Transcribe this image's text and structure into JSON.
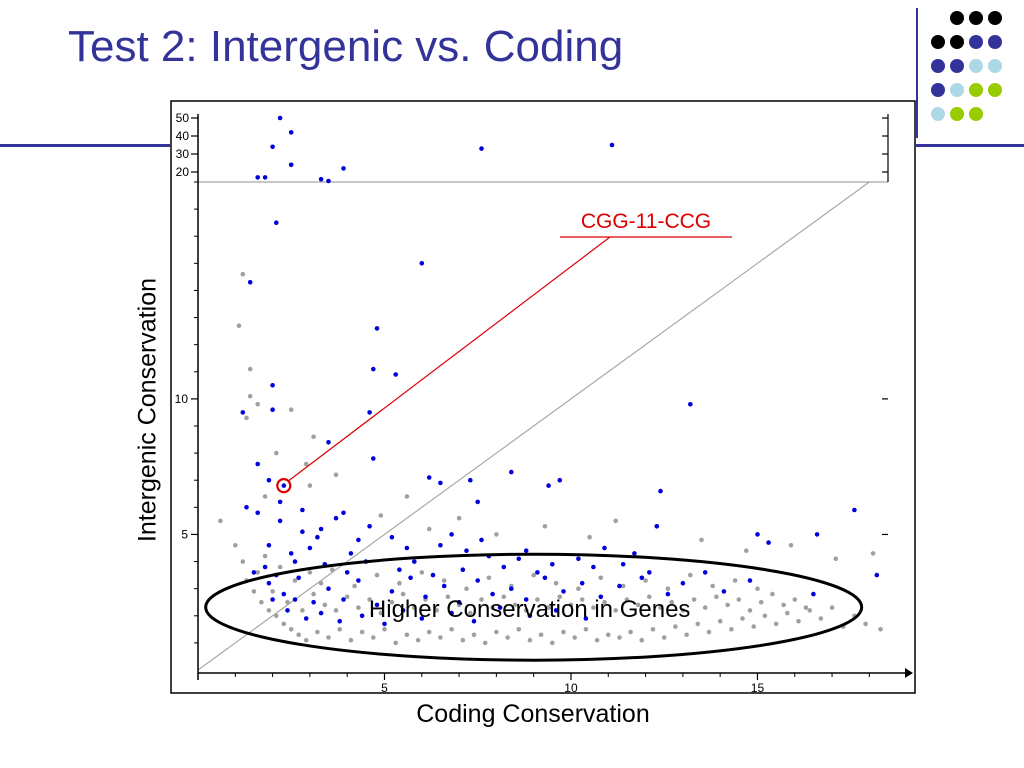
{
  "slide": {
    "title": "Test 2: Intergenic vs. Coding"
  },
  "decor": {
    "dot_colors": [
      "#000000",
      "#333399",
      "#add8e6",
      "#99cc00"
    ],
    "rule_color": "#333399"
  },
  "chart_data": {
    "type": "scatter",
    "title": "",
    "xlabel": "Coding Conservation",
    "ylabel": "Intergenic Conservation",
    "xlim": [
      0,
      18.5
    ],
    "ylim": [
      0,
      18
    ],
    "x_ticks": [
      5,
      10,
      15
    ],
    "x_tick_labels": [
      "5",
      "10",
      "15"
    ],
    "y_ticks": [
      5,
      10
    ],
    "y_tick_labels": [
      "5",
      "10"
    ],
    "y_break_ticks": [
      20,
      30,
      40,
      50
    ],
    "y_break_tick_labels": [
      "20",
      "30",
      "40",
      "50"
    ],
    "grid": false,
    "reference_lines": [
      "y = x diagonal",
      "horizontal line at y-axis break"
    ],
    "series": [
      {
        "color": "#0000dd",
        "points": [
          [
            2.1,
            16.5
          ],
          [
            1.4,
            14.3
          ],
          [
            2.0,
            10.5
          ],
          [
            2.0,
            9.6
          ],
          [
            3.5,
            8.4
          ],
          [
            4.8,
            12.6
          ],
          [
            4.7,
            11.1
          ],
          [
            5.3,
            10.9
          ],
          [
            4.6,
            9.5
          ],
          [
            4.7,
            7.8
          ],
          [
            6.2,
            7.1
          ],
          [
            6.5,
            6.9
          ],
          [
            7.3,
            7.0
          ],
          [
            8.4,
            7.3
          ],
          [
            7.5,
            6.2
          ],
          [
            9.4,
            6.8
          ],
          [
            9.7,
            7.0
          ],
          [
            12.4,
            6.6
          ],
          [
            13.2,
            9.8
          ],
          [
            6.0,
            15.0
          ],
          [
            2.3,
            6.8
          ],
          [
            1.9,
            7.0
          ],
          [
            1.6,
            7.6
          ],
          [
            1.2,
            9.5
          ],
          [
            1.3,
            6.0
          ],
          [
            15.0,
            5.0
          ],
          [
            16.6,
            5.0
          ],
          [
            17.6,
            5.9
          ],
          [
            15.3,
            4.7
          ],
          [
            12.3,
            5.3
          ],
          [
            18.2,
            3.5
          ],
          [
            16.5,
            2.8
          ],
          [
            14.8,
            3.3
          ],
          [
            14.1,
            2.9
          ],
          [
            13.6,
            3.6
          ],
          [
            11.7,
            4.3
          ],
          [
            10.9,
            4.5
          ],
          [
            10.2,
            4.1
          ],
          [
            9.5,
            3.9
          ],
          [
            8.8,
            4.4
          ],
          [
            8.2,
            3.8
          ],
          [
            7.8,
            4.2
          ],
          [
            7.1,
            3.7
          ],
          [
            6.5,
            4.6
          ],
          [
            5.8,
            4.0
          ],
          [
            5.2,
            4.9
          ],
          [
            4.6,
            5.3
          ],
          [
            4.1,
            4.3
          ],
          [
            3.7,
            5.6
          ],
          [
            3.2,
            4.9
          ],
          [
            2.8,
            5.1
          ],
          [
            2.5,
            4.3
          ],
          [
            2.2,
            5.5
          ],
          [
            1.9,
            4.6
          ],
          [
            1.6,
            5.8
          ],
          [
            1.5,
            3.6
          ],
          [
            1.9,
            3.2
          ],
          [
            2.3,
            2.8
          ],
          [
            2.7,
            3.4
          ],
          [
            3.1,
            2.5
          ],
          [
            3.5,
            3.0
          ],
          [
            3.9,
            2.6
          ],
          [
            4.3,
            3.3
          ],
          [
            4.8,
            2.4
          ],
          [
            5.2,
            2.9
          ],
          [
            5.7,
            3.4
          ],
          [
            6.1,
            2.7
          ],
          [
            6.6,
            3.1
          ],
          [
            7.0,
            2.5
          ],
          [
            7.5,
            3.3
          ],
          [
            7.9,
            2.8
          ],
          [
            8.4,
            3.0
          ],
          [
            8.8,
            2.6
          ],
          [
            9.3,
            3.4
          ],
          [
            9.8,
            2.9
          ],
          [
            10.3,
            3.2
          ],
          [
            10.8,
            2.7
          ],
          [
            11.3,
            3.1
          ],
          [
            11.9,
            3.4
          ],
          [
            12.6,
            2.8
          ],
          [
            2.4,
            2.2
          ],
          [
            2.9,
            1.9
          ],
          [
            3.3,
            2.1
          ],
          [
            3.8,
            1.8
          ],
          [
            4.4,
            2.0
          ],
          [
            5.0,
            1.7
          ],
          [
            5.5,
            2.2
          ],
          [
            6.0,
            1.9
          ],
          [
            6.8,
            2.1
          ],
          [
            7.4,
            1.8
          ],
          [
            8.1,
            2.3
          ],
          [
            8.9,
            2.0
          ],
          [
            9.6,
            2.2
          ],
          [
            10.4,
            1.9
          ],
          [
            2.0,
            2.6
          ],
          [
            1.8,
            3.8
          ],
          [
            2.6,
            4.0
          ],
          [
            3.0,
            4.5
          ],
          [
            3.4,
            3.9
          ],
          [
            4.0,
            3.6
          ],
          [
            4.5,
            4.0
          ],
          [
            5.4,
            3.7
          ],
          [
            6.3,
            3.5
          ],
          [
            7.2,
            4.4
          ],
          [
            8.6,
            4.1
          ],
          [
            9.1,
            3.6
          ],
          [
            10.6,
            3.8
          ],
          [
            11.4,
            3.9
          ],
          [
            12.1,
            3.6
          ],
          [
            13.0,
            3.2
          ],
          [
            2.2,
            6.2
          ],
          [
            2.8,
            5.9
          ],
          [
            3.3,
            5.2
          ],
          [
            3.9,
            5.8
          ],
          [
            4.3,
            4.8
          ],
          [
            5.6,
            4.5
          ],
          [
            6.8,
            5.0
          ],
          [
            7.6,
            4.8
          ],
          [
            2.1,
            3.5
          ],
          [
            2.6,
            2.6
          ]
        ]
      },
      {
        "color": "#a0a0a0",
        "points": [
          [
            0.6,
            5.5
          ],
          [
            1.0,
            4.6
          ],
          [
            1.2,
            4.0
          ],
          [
            1.3,
            3.3
          ],
          [
            1.5,
            2.9
          ],
          [
            1.7,
            2.5
          ],
          [
            1.9,
            2.2
          ],
          [
            2.1,
            2.0
          ],
          [
            2.3,
            1.7
          ],
          [
            2.5,
            1.5
          ],
          [
            2.7,
            1.3
          ],
          [
            2.9,
            1.1
          ],
          [
            3.2,
            1.4
          ],
          [
            3.5,
            1.2
          ],
          [
            3.8,
            1.5
          ],
          [
            4.1,
            1.1
          ],
          [
            4.4,
            1.4
          ],
          [
            4.7,
            1.2
          ],
          [
            5.0,
            1.5
          ],
          [
            5.3,
            1.0
          ],
          [
            5.6,
            1.3
          ],
          [
            5.9,
            1.1
          ],
          [
            6.2,
            1.4
          ],
          [
            6.5,
            1.2
          ],
          [
            6.8,
            1.5
          ],
          [
            7.1,
            1.1
          ],
          [
            7.4,
            1.3
          ],
          [
            7.7,
            1.0
          ],
          [
            8.0,
            1.4
          ],
          [
            8.3,
            1.2
          ],
          [
            8.6,
            1.5
          ],
          [
            8.9,
            1.1
          ],
          [
            9.2,
            1.3
          ],
          [
            9.5,
            1.0
          ],
          [
            9.8,
            1.4
          ],
          [
            10.1,
            1.2
          ],
          [
            10.4,
            1.5
          ],
          [
            10.7,
            1.1
          ],
          [
            11.0,
            1.3
          ],
          [
            11.3,
            1.2
          ],
          [
            11.6,
            1.4
          ],
          [
            11.9,
            1.1
          ],
          [
            12.2,
            1.5
          ],
          [
            12.5,
            1.2
          ],
          [
            12.8,
            1.6
          ],
          [
            13.1,
            1.3
          ],
          [
            13.4,
            1.7
          ],
          [
            13.7,
            1.4
          ],
          [
            14.0,
            1.8
          ],
          [
            14.3,
            1.5
          ],
          [
            14.6,
            1.9
          ],
          [
            14.9,
            1.6
          ],
          [
            15.2,
            2.0
          ],
          [
            15.5,
            1.7
          ],
          [
            15.8,
            2.1
          ],
          [
            16.1,
            1.8
          ],
          [
            16.4,
            2.2
          ],
          [
            16.7,
            1.9
          ],
          [
            17.0,
            2.3
          ],
          [
            17.3,
            1.6
          ],
          [
            17.6,
            2.0
          ],
          [
            17.9,
            1.7
          ],
          [
            18.3,
            1.5
          ],
          [
            2.0,
            2.9
          ],
          [
            2.4,
            2.5
          ],
          [
            2.8,
            2.2
          ],
          [
            3.1,
            2.8
          ],
          [
            3.4,
            2.4
          ],
          [
            3.7,
            2.2
          ],
          [
            4.0,
            2.7
          ],
          [
            4.3,
            2.3
          ],
          [
            4.6,
            2.6
          ],
          [
            4.9,
            2.1
          ],
          [
            5.2,
            2.5
          ],
          [
            5.5,
            2.8
          ],
          [
            5.8,
            2.3
          ],
          [
            6.1,
            2.6
          ],
          [
            6.4,
            2.2
          ],
          [
            6.7,
            2.7
          ],
          [
            7.0,
            2.4
          ],
          [
            7.3,
            2.1
          ],
          [
            7.6,
            2.6
          ],
          [
            7.9,
            2.3
          ],
          [
            8.2,
            2.7
          ],
          [
            8.5,
            2.4
          ],
          [
            8.8,
            2.2
          ],
          [
            9.1,
            2.6
          ],
          [
            9.4,
            2.3
          ],
          [
            9.7,
            2.7
          ],
          [
            10.0,
            2.4
          ],
          [
            10.3,
            2.6
          ],
          [
            10.6,
            2.3
          ],
          [
            10.9,
            2.5
          ],
          [
            11.2,
            2.2
          ],
          [
            11.5,
            2.6
          ],
          [
            11.8,
            2.4
          ],
          [
            12.1,
            2.7
          ],
          [
            12.4,
            2.3
          ],
          [
            12.7,
            2.5
          ],
          [
            13.0,
            2.2
          ],
          [
            13.3,
            2.6
          ],
          [
            13.6,
            2.3
          ],
          [
            13.9,
            2.7
          ],
          [
            14.2,
            2.4
          ],
          [
            14.5,
            2.6
          ],
          [
            14.8,
            2.2
          ],
          [
            15.1,
            2.5
          ],
          [
            15.4,
            2.8
          ],
          [
            15.7,
            2.4
          ],
          [
            16.0,
            2.6
          ],
          [
            16.3,
            2.3
          ],
          [
            1.6,
            3.6
          ],
          [
            1.8,
            4.2
          ],
          [
            2.2,
            3.8
          ],
          [
            2.6,
            3.3
          ],
          [
            3.0,
            3.6
          ],
          [
            3.3,
            3.2
          ],
          [
            3.6,
            3.7
          ],
          [
            4.2,
            3.1
          ],
          [
            4.8,
            3.5
          ],
          [
            5.4,
            3.2
          ],
          [
            6.0,
            3.6
          ],
          [
            6.6,
            3.3
          ],
          [
            7.2,
            3.0
          ],
          [
            7.8,
            3.4
          ],
          [
            8.4,
            3.1
          ],
          [
            9.0,
            3.5
          ],
          [
            9.6,
            3.2
          ],
          [
            10.2,
            3.0
          ],
          [
            10.8,
            3.4
          ],
          [
            11.4,
            3.1
          ],
          [
            12.0,
            3.3
          ],
          [
            12.6,
            3.0
          ],
          [
            13.2,
            3.5
          ],
          [
            13.8,
            3.1
          ],
          [
            14.4,
            3.3
          ],
          [
            15.0,
            3.0
          ],
          [
            1.3,
            9.3
          ],
          [
            1.2,
            14.6
          ],
          [
            1.4,
            11.1
          ],
          [
            1.4,
            10.1
          ],
          [
            1.6,
            9.8
          ],
          [
            2.1,
            8.0
          ],
          [
            1.8,
            6.4
          ],
          [
            3.0,
            6.8
          ],
          [
            3.7,
            7.2
          ],
          [
            5.6,
            6.4
          ],
          [
            4.9,
            5.7
          ],
          [
            6.2,
            5.2
          ],
          [
            7.0,
            5.6
          ],
          [
            8.0,
            5.0
          ],
          [
            9.3,
            5.3
          ],
          [
            10.5,
            4.9
          ],
          [
            11.2,
            5.5
          ],
          [
            13.5,
            4.8
          ],
          [
            14.7,
            4.4
          ],
          [
            15.9,
            4.6
          ],
          [
            17.1,
            4.1
          ],
          [
            18.1,
            4.3
          ],
          [
            3.1,
            8.6
          ],
          [
            2.9,
            7.6
          ],
          [
            2.5,
            9.6
          ],
          [
            1.1,
            12.7
          ]
        ]
      }
    ],
    "break_points": [
      {
        "x": 2.2,
        "y": 50,
        "color": "#0000dd"
      },
      {
        "x": 2.5,
        "y": 42,
        "color": "#0000dd"
      },
      {
        "x": 2.0,
        "y": 34,
        "color": "#0000dd"
      },
      {
        "x": 2.5,
        "y": 24,
        "color": "#0000dd"
      },
      {
        "x": 3.9,
        "y": 22,
        "color": "#0000dd"
      },
      {
        "x": 7.6,
        "y": 33,
        "color": "#0000dd"
      },
      {
        "x": 11.1,
        "y": 35,
        "color": "#0000dd"
      },
      {
        "x": 1.6,
        "y": 17,
        "color": "#0000dd"
      },
      {
        "x": 1.8,
        "y": 17,
        "color": "#0000dd"
      },
      {
        "x": 3.3,
        "y": 16,
        "color": "#0000dd"
      },
      {
        "x": 3.5,
        "y": 15,
        "color": "#0000dd"
      }
    ],
    "highlight": {
      "label": "CGG-11-CCG",
      "x": 2.3,
      "y": 6.8,
      "color": "#dd0000"
    },
    "ellipse_annotation": {
      "label": "Higher Conservation in Genes",
      "cx": 9.0,
      "cy": 1.8
    }
  }
}
